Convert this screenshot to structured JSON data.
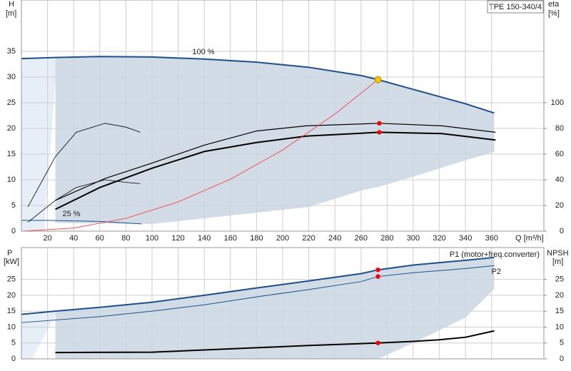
{
  "chart_data": [
    {
      "type": "line",
      "title": "TPE 150-340/4",
      "xlabel": "Q [m³/h]",
      "ylabel": "H",
      "yunit": "[m]",
      "y2label": "eta",
      "y2unit": "[%]",
      "xlim": [
        0,
        400
      ],
      "xticks": [
        20,
        40,
        60,
        80,
        100,
        120,
        140,
        160,
        180,
        200,
        220,
        240,
        260,
        280,
        300,
        320,
        340,
        360
      ],
      "ylim": [
        0,
        45
      ],
      "yticks": [
        0,
        5,
        10,
        15,
        20,
        25,
        30,
        35
      ],
      "y2lim": [
        0,
        180
      ],
      "y2ticks": [
        0,
        20,
        40,
        60,
        80,
        100
      ],
      "grid": true,
      "range": {
        "color": "#c9d6e3",
        "x": [
          26,
          60,
          100,
          140,
          180,
          220,
          260,
          273,
          300,
          340,
          362
        ],
        "lower": [
          1.6,
          1.5,
          1.4,
          2.5,
          3.6,
          4.7,
          7.9,
          8.6,
          10.6,
          13.8,
          15.4
        ]
      },
      "series": [
        {
          "name": "100 %",
          "color": "#1f4e8c",
          "width": 2,
          "x": [
            0,
            26,
            60,
            100,
            140,
            180,
            220,
            260,
            273,
            300,
            340,
            362
          ],
          "values": [
            33.6,
            33.8,
            34,
            33.9,
            33.5,
            32.9,
            31.9,
            30.3,
            29.5,
            27.6,
            24.8,
            23
          ]
        },
        {
          "name": "25 %",
          "color": "#1f4e8c",
          "width": 1,
          "x": [
            0,
            20,
            40,
            60,
            80,
            92
          ],
          "values": [
            2.1,
            2.1,
            2,
            1.9,
            1.6,
            1.4
          ]
        },
        {
          "color": "#000000",
          "width": 1.2,
          "axis": "y2",
          "x": [
            26,
            64,
            100,
            140,
            180,
            218,
            274,
            322,
            363
          ],
          "values": [
            24,
            41,
            53,
            67,
            78,
            82,
            84,
            82,
            77
          ]
        },
        {
          "color": "#000000",
          "width": 2,
          "axis": "y2",
          "x": [
            26,
            60,
            100,
            140,
            180,
            218,
            274,
            322,
            363
          ],
          "values": [
            17,
            34,
            49,
            62,
            69,
            74,
            77,
            76,
            71
          ]
        },
        {
          "color": "#000000",
          "width": 0.8,
          "axis": "y2",
          "x": [
            5,
            26,
            42,
            64,
            80,
            91
          ],
          "values": [
            19,
            58,
            77,
            84,
            81,
            77
          ]
        },
        {
          "color": "#000000",
          "width": 0.8,
          "axis": "y2",
          "x": [
            5,
            26,
            42,
            64,
            80,
            91
          ],
          "values": [
            7,
            24,
            34,
            40,
            38,
            37
          ]
        },
        {
          "color": "#ff3030",
          "width": 0.8,
          "x": [
            0,
            40,
            80,
            120,
            160,
            200,
            240,
            273
          ],
          "values": [
            0,
            0.6,
            2.5,
            5.7,
            10.1,
            15.8,
            22.8,
            29.5
          ]
        }
      ],
      "markers": [
        {
          "x": 273,
          "value": 29.5,
          "color": "#f5c400"
        },
        {
          "x": 274,
          "value": 84,
          "color": "#ff0000",
          "axis": "y2"
        },
        {
          "x": 274,
          "value": 77,
          "color": "#ff0000",
          "axis": "y2"
        }
      ]
    },
    {
      "type": "line",
      "ylabel": "P",
      "yunit": "[kW]",
      "y2label": "NPSH",
      "y2unit": "[m]",
      "xlim": [
        0,
        400
      ],
      "ylim": [
        0,
        35
      ],
      "yticks": [
        0,
        5,
        10,
        15,
        20,
        25
      ],
      "y2lim": [
        0,
        35
      ],
      "y2ticks": [
        0,
        5,
        10,
        15,
        20,
        25
      ],
      "grid": true,
      "range": {
        "color": "#c9d6e3",
        "x": [
          26,
          60,
          100,
          140,
          180,
          220,
          260,
          273,
          300,
          340,
          362
        ],
        "lower": [
          0,
          0,
          0,
          0,
          0,
          0,
          0,
          0,
          5,
          13,
          22
        ]
      },
      "series": [
        {
          "name": "P1 (motor+freq.converter)",
          "color": "#1f4e8c",
          "width": 2,
          "x": [
            0,
            26,
            60,
            100,
            140,
            180,
            220,
            260,
            273,
            300,
            340,
            362
          ],
          "values": [
            14,
            15,
            16.2,
            17.8,
            20,
            22.3,
            24.5,
            26.8,
            28,
            29.5,
            31,
            31.9
          ]
        },
        {
          "name": "P2",
          "color": "#1f4e8c",
          "width": 1,
          "x": [
            0,
            60,
            100,
            140,
            180,
            220,
            260,
            273,
            300,
            340,
            362
          ],
          "values": [
            11.4,
            13.3,
            15,
            17,
            19.5,
            21.8,
            24.3,
            25.9,
            27.1,
            28.4,
            29.3
          ]
        },
        {
          "color": "#000000",
          "width": 2,
          "axis": "y2",
          "x": [
            26,
            100,
            140,
            180,
            220,
            260,
            273,
            300,
            320,
            340,
            362
          ],
          "values": [
            2,
            2.1,
            2.8,
            3.5,
            4.2,
            4.8,
            5,
            5.5,
            6,
            6.8,
            8.8
          ]
        }
      ],
      "markers": [
        {
          "x": 273,
          "value": 28,
          "color": "#ff0000"
        },
        {
          "x": 273,
          "value": 25.9,
          "color": "#ff0000"
        },
        {
          "x": 273,
          "value": 5,
          "color": "#ff0000",
          "axis": "y2"
        }
      ]
    }
  ]
}
